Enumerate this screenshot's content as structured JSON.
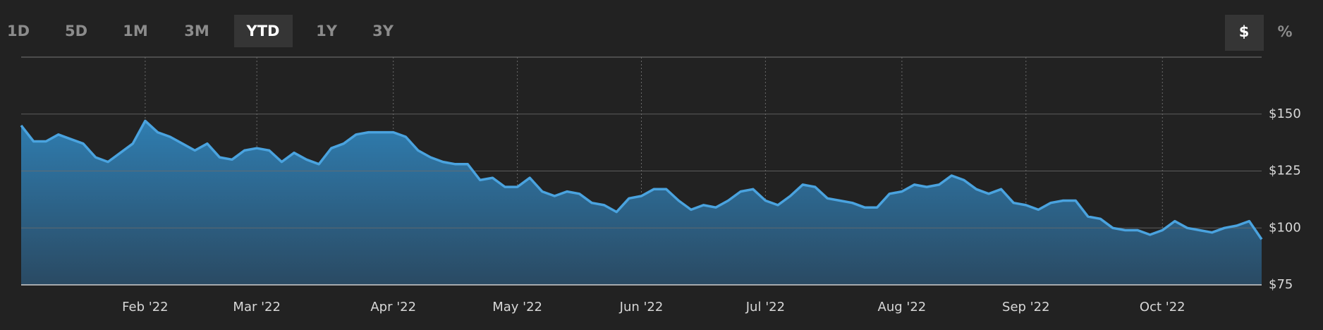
{
  "range_buttons": [
    "1D",
    "5D",
    "1M",
    "3M",
    "YTD",
    "1Y",
    "3Y"
  ],
  "unit_toggles": [
    "$",
    "%"
  ],
  "chart_data": {
    "type": "area",
    "categories": [
      null,
      null,
      null,
      null,
      null,
      null,
      null,
      null,
      null,
      null,
      "Feb '22",
      null,
      null,
      null,
      null,
      null,
      null,
      null,
      null,
      "Mar '22",
      null,
      null,
      null,
      null,
      null,
      null,
      null,
      null,
      null,
      null,
      "Apr '22",
      null,
      null,
      null,
      null,
      null,
      null,
      null,
      null,
      null,
      "May '22",
      null,
      null,
      null,
      null,
      null,
      null,
      null,
      null,
      null,
      "Jun '22",
      null,
      null,
      null,
      null,
      null,
      null,
      null,
      null,
      null,
      "Jul '22",
      null,
      null,
      null,
      null,
      null,
      null,
      null,
      null,
      null,
      null,
      "Aug '22",
      null,
      null,
      null,
      null,
      null,
      null,
      null,
      null,
      null,
      "Sep '22",
      null,
      null,
      null,
      null,
      null,
      null,
      null,
      null,
      null,
      null,
      "Oct '22",
      null,
      null,
      null,
      null,
      null,
      null,
      null,
      null
    ],
    "values": [
      145,
      138,
      138,
      141,
      139,
      137,
      131,
      129,
      133,
      137,
      147,
      142,
      140,
      137,
      134,
      137,
      131,
      130,
      134,
      135,
      134,
      129,
      133,
      130,
      128,
      135,
      137,
      141,
      142,
      142,
      142,
      140,
      134,
      131,
      129,
      128,
      128,
      121,
      122,
      118,
      118,
      122,
      116,
      114,
      116,
      115,
      111,
      110,
      107,
      113,
      114,
      117,
      117,
      112,
      108,
      110,
      109,
      112,
      116,
      117,
      112,
      110,
      114,
      119,
      118,
      113,
      112,
      111,
      109,
      109,
      115,
      116,
      119,
      118,
      119,
      123,
      121,
      117,
      115,
      117,
      111,
      110,
      108,
      111,
      112,
      112,
      105,
      104,
      100,
      99,
      99,
      97,
      99,
      103,
      100,
      99,
      98,
      100,
      101,
      103,
      95
    ],
    "color": "#4aa3df",
    "ylim": [
      75,
      175
    ],
    "yticks": [
      {
        "value": 75,
        "label": "$75"
      },
      {
        "value": 100,
        "label": "$100"
      },
      {
        "value": 125,
        "label": "$125"
      },
      {
        "value": 150,
        "label": "$150"
      }
    ],
    "grid": true
  }
}
